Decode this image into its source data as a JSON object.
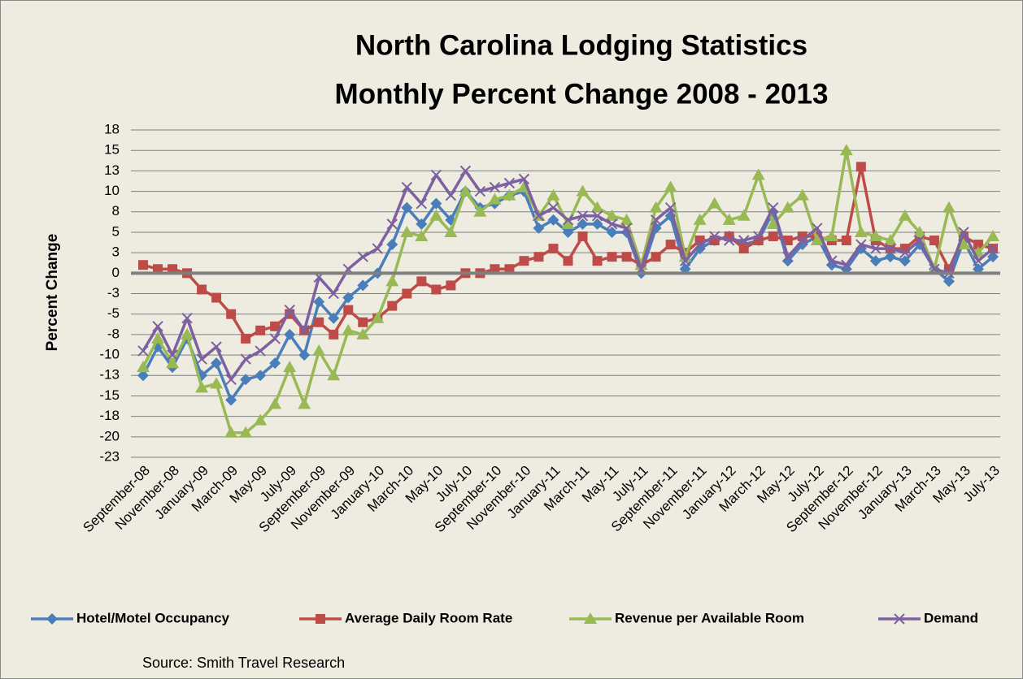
{
  "chart_data": {
    "type": "line",
    "title": "North Carolina Lodging Statistics",
    "subtitle": "Monthly Percent Change 2008 - 2013",
    "y_label": "Percent Change",
    "annotation": "Source: Smith Travel Research",
    "categories": [
      "September-08",
      null,
      "November-08",
      null,
      "January-09",
      null,
      "March-09",
      null,
      "May-09",
      null,
      "July-09",
      null,
      "September-09",
      null,
      "November-09",
      null,
      "January-10",
      null,
      "March-10",
      null,
      "May-10",
      null,
      "July-10",
      null,
      "September-10",
      null,
      "November-10",
      null,
      "January-11",
      null,
      "March-11",
      null,
      "May-11",
      null,
      "July-11",
      null,
      "September-11",
      null,
      "November-11",
      null,
      "January-12",
      null,
      "March-12",
      null,
      "May-12",
      null,
      "July-12",
      null,
      "September-12",
      null,
      "November-12",
      null,
      "January-13",
      null,
      "March-13",
      null,
      "May-13",
      null,
      "July-13"
    ],
    "series": [
      {
        "name": "Hotel/Motel Occupancy",
        "color": "#4a7ebb",
        "marker": "diamond",
        "values": [
          -12.5,
          -9,
          -11.5,
          -8,
          -12.5,
          -11,
          -15.5,
          -13,
          -12.5,
          -11,
          -7.5,
          -10,
          -3.5,
          -5.5,
          -3,
          -1.5,
          0,
          3.5,
          8,
          6,
          8.5,
          6.5,
          10,
          8,
          8.5,
          9.5,
          10,
          5.5,
          6.5,
          5,
          6,
          6,
          5,
          5,
          0,
          5.5,
          7,
          0.5,
          3,
          4,
          4.5,
          3.5,
          4,
          7.5,
          1.5,
          3.5,
          4.5,
          1,
          0.5,
          3,
          1.5,
          2,
          1.5,
          3.5,
          0.5,
          -1,
          4,
          0.5,
          2
        ]
      },
      {
        "name": "Average Daily Room Rate",
        "color": "#be4b48",
        "marker": "square",
        "values": [
          1,
          0.5,
          0.5,
          0,
          -2,
          -3,
          -5,
          -8,
          -7,
          -6.5,
          -5,
          -7,
          -6,
          -7.5,
          -4.5,
          -6,
          -5.5,
          -4,
          -2.5,
          -1,
          -2,
          -1.5,
          0,
          0,
          0.5,
          0.5,
          1.5,
          2,
          3,
          1.5,
          4.5,
          1.5,
          2,
          2,
          1,
          2,
          3.5,
          2.5,
          4,
          4,
          4.5,
          3,
          4,
          4.5,
          4,
          4.5,
          4.5,
          4,
          4,
          13,
          4,
          3,
          3,
          4.5,
          4,
          0.5,
          4.5,
          3.5,
          3
        ]
      },
      {
        "name": "Revenue per Available Room",
        "color": "#98b954",
        "marker": "triangle",
        "values": [
          -11.5,
          -8,
          -11,
          -7.5,
          -14,
          -13.5,
          -19.5,
          -19.5,
          -18,
          -16,
          -11.5,
          -16,
          -9.5,
          -12.5,
          -7,
          -7.5,
          -5.5,
          -1,
          5,
          4.5,
          7,
          5,
          10,
          7.5,
          9,
          9.5,
          10.5,
          7,
          9.5,
          6,
          10,
          8,
          7,
          6.5,
          1,
          8,
          10.5,
          2,
          6.5,
          8.5,
          6.5,
          7,
          12,
          6,
          8,
          9.5,
          4,
          4.5,
          15,
          5,
          4.5,
          4,
          7,
          5,
          0.5,
          8,
          3.5,
          2.5,
          4.5
        ]
      },
      {
        "name": "Demand",
        "color": "#7d60a0",
        "marker": "x",
        "values": [
          -9.5,
          -6.5,
          -10,
          -5.5,
          -10.5,
          -9,
          -13,
          -10.5,
          -9.5,
          -8,
          -4.5,
          -7,
          -0.5,
          -2.5,
          0.5,
          2,
          3,
          6,
          10.5,
          8.5,
          12,
          9.5,
          12.5,
          10,
          10.5,
          11,
          11.5,
          7,
          8,
          6.5,
          7,
          7,
          6,
          5.5,
          0.5,
          6.5,
          8,
          1.5,
          3.5,
          4.5,
          4,
          4,
          4.5,
          8,
          2,
          4,
          5.5,
          1.5,
          1,
          3.5,
          3,
          3,
          2.5,
          4,
          0.5,
          0,
          5,
          1.5,
          3
        ]
      }
    ],
    "ylim": [
      -22.5,
      17.5
    ],
    "yticks": [
      {
        "value": 17.5,
        "label": "18"
      },
      15,
      {
        "value": 12.5,
        "label": "13"
      },
      10,
      {
        "value": 7.5,
        "label": "8"
      },
      5,
      {
        "value": 2.5,
        "label": "3"
      },
      0,
      {
        "value": -2.5,
        "label": "-3"
      },
      -5,
      {
        "value": -7.5,
        "label": "-8"
      },
      -10,
      {
        "value": -12.5,
        "label": "-13"
      },
      -15,
      {
        "value": -17.5,
        "label": "-18"
      },
      -20,
      {
        "value": -22.5,
        "label": "-23"
      }
    ],
    "grid": true,
    "legend": "bottom"
  }
}
